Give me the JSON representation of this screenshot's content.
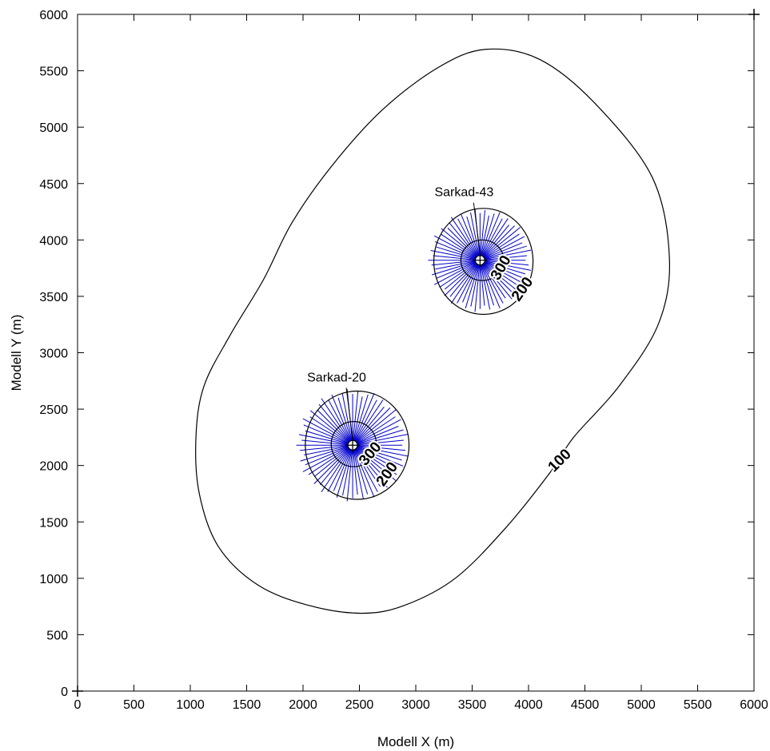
{
  "chart_data": {
    "type": "contour",
    "xlabel": "Modell X (m)",
    "ylabel": "Modell Y (m)",
    "xlim": [
      0,
      6000
    ],
    "ylim": [
      0,
      6000
    ],
    "x_ticks": [
      "0",
      "500",
      "1000",
      "1500",
      "2000",
      "2500",
      "3000",
      "3500",
      "4000",
      "4500",
      "5000",
      "5500",
      "6000"
    ],
    "y_ticks": [
      "0",
      "500",
      "1000",
      "1500",
      "2000",
      "2500",
      "3000",
      "3500",
      "4000",
      "4500",
      "5000",
      "5500",
      "6000"
    ],
    "grid": false,
    "line_color": "#000000",
    "streamline_color": "#0000cc",
    "wells": [
      {
        "name": "Sarkad-43",
        "x": 3570,
        "y": 3820
      },
      {
        "name": "Sarkad-20",
        "x": 2440,
        "y": 2180
      }
    ],
    "contours": [
      {
        "level": 100,
        "label": "100",
        "points": [
          [
            2520,
            690
          ],
          [
            2050,
            760
          ],
          [
            1600,
            940
          ],
          [
            1250,
            1280
          ],
          [
            1080,
            1750
          ],
          [
            1050,
            2250
          ],
          [
            1120,
            2700
          ],
          [
            1350,
            3150
          ],
          [
            1650,
            3650
          ],
          [
            1900,
            4150
          ],
          [
            2250,
            4650
          ],
          [
            2700,
            5150
          ],
          [
            3200,
            5530
          ],
          [
            3620,
            5690
          ],
          [
            4100,
            5600
          ],
          [
            4600,
            5200
          ],
          [
            5100,
            4550
          ],
          [
            5250,
            3830
          ],
          [
            5150,
            3250
          ],
          [
            4800,
            2700
          ],
          [
            4400,
            2250
          ],
          [
            4200,
            1950
          ],
          [
            3800,
            1450
          ],
          [
            3350,
            1000
          ],
          [
            2900,
            760
          ],
          [
            2520,
            690
          ]
        ]
      },
      {
        "level": 200,
        "label": "200",
        "ellipse": {
          "cx": 2480,
          "cy": 2180,
          "rx": 460,
          "ry": 480
        }
      },
      {
        "level": 300,
        "label": "300",
        "ellipse": {
          "cx": 2450,
          "cy": 2190,
          "rx": 200,
          "ry": 200
        }
      },
      {
        "level": 200,
        "label": "200",
        "ellipse": {
          "cx": 3600,
          "cy": 3810,
          "rx": 440,
          "ry": 470
        }
      },
      {
        "level": 300,
        "label": "300",
        "ellipse": {
          "cx": 3590,
          "cy": 3820,
          "rx": 190,
          "ry": 180
        }
      }
    ],
    "contour_labels": [
      {
        "text": "100",
        "x": 4280,
        "y": 2040,
        "angle": -45
      },
      {
        "text": "200",
        "x": 2750,
        "y": 1920,
        "angle": -55
      },
      {
        "text": "300",
        "x": 2600,
        "y": 2100,
        "angle": -50
      },
      {
        "text": "200",
        "x": 3950,
        "y": 3560,
        "angle": -55
      },
      {
        "text": "300",
        "x": 3760,
        "y": 3750,
        "angle": -60
      }
    ],
    "streamline_fans": [
      {
        "cx": 2440,
        "cy": 2180,
        "count": 64,
        "radius": 500
      },
      {
        "cx": 3570,
        "cy": 3820,
        "count": 64,
        "radius": 460
      }
    ]
  }
}
